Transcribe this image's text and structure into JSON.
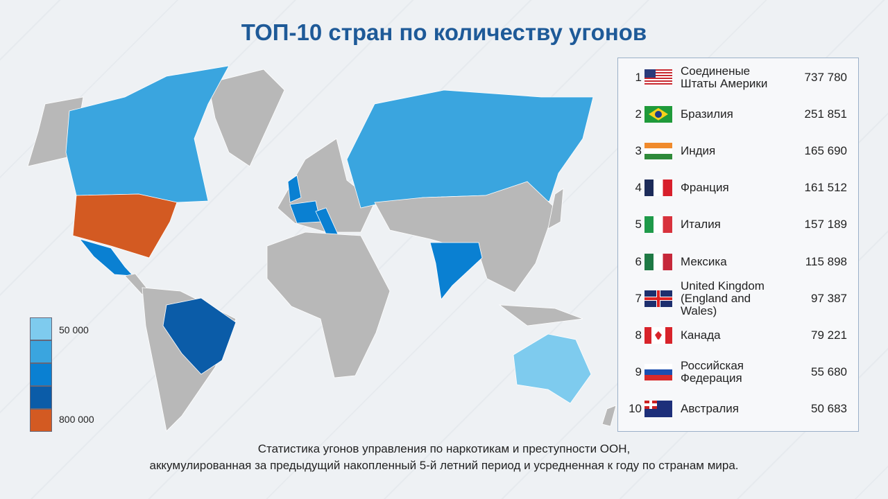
{
  "title": "ТОП-10 стран по количеству угонов",
  "colors": {
    "gray": "#b8b8b8",
    "c1": "#7ecbee",
    "c2": "#3aa5df",
    "c3": "#0a80d2",
    "c4": "#0b5ca8",
    "c5": "#d35a22"
  },
  "legend": {
    "min_label": "50 000",
    "max_label": "800 000"
  },
  "ranking": [
    {
      "rank": "1",
      "country": "Соединеные Штаты Америки",
      "value": "737 780",
      "flag": "us"
    },
    {
      "rank": "2",
      "country": "Бразилия",
      "value": "251 851",
      "flag": "br"
    },
    {
      "rank": "3",
      "country": "Индия",
      "value": "165 690",
      "flag": "in"
    },
    {
      "rank": "4",
      "country": "Франция",
      "value": "161 512",
      "flag": "fr"
    },
    {
      "rank": "5",
      "country": "Италия",
      "value": "157 189",
      "flag": "it"
    },
    {
      "rank": "6",
      "country": "Мексика",
      "value": "115 898",
      "flag": "mx"
    },
    {
      "rank": "7",
      "country": "United Kingdom (England and Wales)",
      "value": "97 387",
      "flag": "gb"
    },
    {
      "rank": "8",
      "country": "Канада",
      "value": "79 221",
      "flag": "ca"
    },
    {
      "rank": "9",
      "country": "Российская Федерация",
      "value": "55 680",
      "flag": "ru"
    },
    {
      "rank": "10",
      "country": "Австралия",
      "value": "50 683",
      "flag": "au"
    }
  ],
  "map_fill": {
    "usa": "c5",
    "brazil": "c4",
    "india": "c3",
    "france": "c3",
    "italy": "c3",
    "mexico": "c3",
    "uk": "c3",
    "canada": "c2",
    "russia": "c2",
    "australia": "c1"
  },
  "caption": {
    "line1": "Статистика угонов управления по наркотикам и преступности ООН,",
    "line2": "аккумулированная за предыдущий накопленный 5-й летний период и усредненная к году по странам мира."
  }
}
